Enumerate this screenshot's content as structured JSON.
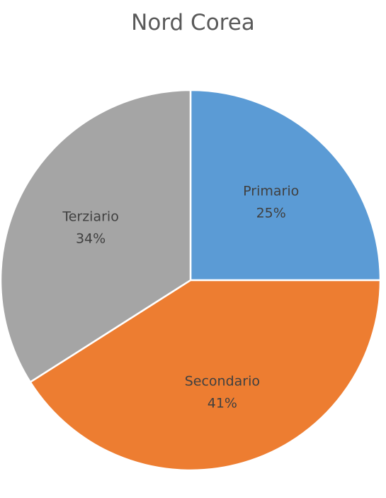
{
  "chart_data": {
    "type": "pie",
    "title": "Nord Corea",
    "slices": [
      {
        "label": "Primario",
        "value": 25,
        "value_label": "25%",
        "color": "#5B9BD5"
      },
      {
        "label": "Secondario",
        "value": 41,
        "value_label": "41%",
        "color": "#ED7D31"
      },
      {
        "label": "Terziario",
        "value": 34,
        "value_label": "34%",
        "color": "#A5A5A5"
      }
    ],
    "start_angle_deg": 0,
    "direction": "clockwise",
    "legend": "none",
    "data_labels": "inside"
  }
}
